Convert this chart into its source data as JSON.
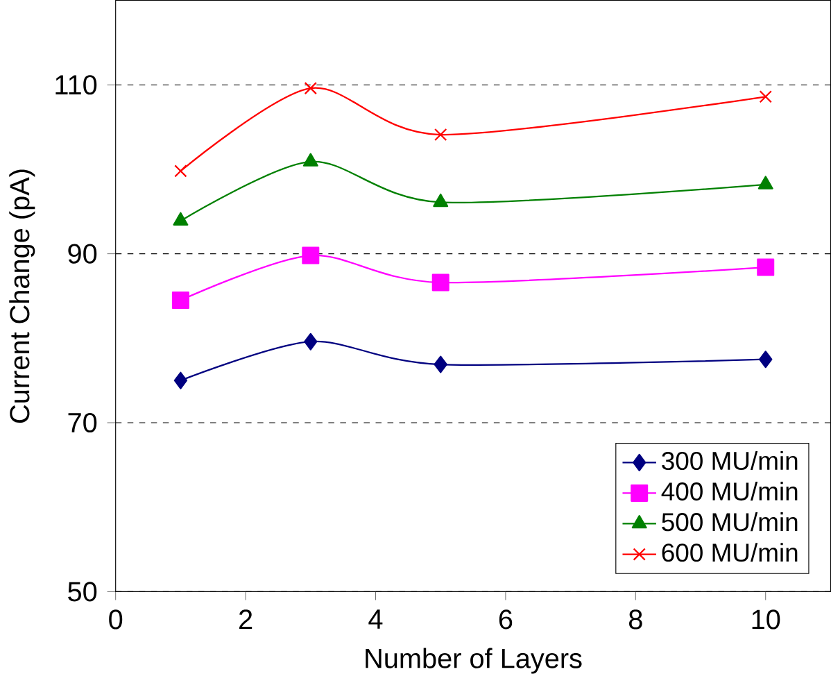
{
  "chart_data": {
    "type": "line",
    "xlabel": "Number of Layers",
    "ylabel": "Current Change (pA)",
    "xlim": [
      0,
      11
    ],
    "xticks": [
      0,
      2,
      4,
      6,
      8,
      10
    ],
    "ylim": [
      50,
      120
    ],
    "yticks": [
      50,
      70,
      90,
      110
    ],
    "grid": "y",
    "legend": "bottom right",
    "x": [
      1,
      3,
      5,
      10
    ],
    "series": [
      {
        "name": "300 MU/min",
        "color": "#000080",
        "marker": "diamond",
        "values": [
          75.0,
          79.6,
          76.9,
          77.5
        ]
      },
      {
        "name": "400 MU/min",
        "color": "#ff00ff",
        "marker": "square",
        "values": [
          84.5,
          89.8,
          86.6,
          88.4
        ]
      },
      {
        "name": "500 MU/min",
        "color": "#008000",
        "marker": "triangle",
        "values": [
          93.9,
          100.9,
          96.1,
          98.2
        ]
      },
      {
        "name": "600 MU/min",
        "color": "#ff0000",
        "marker": "cross",
        "values": [
          99.8,
          109.6,
          104.1,
          108.6
        ]
      }
    ]
  }
}
